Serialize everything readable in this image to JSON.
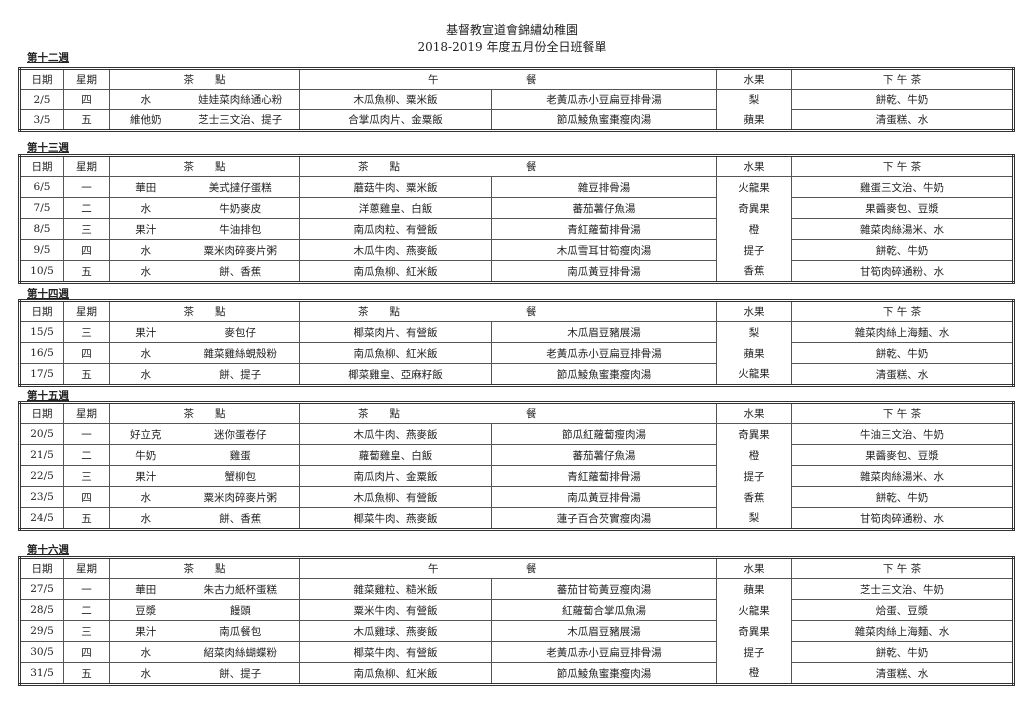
{
  "title": {
    "line1": "基督教宣道會錦繡幼稚園",
    "line2": "2018-2019 年度五月份全日班餐單"
  },
  "columns": {
    "date": "日期",
    "weekday": "星期",
    "tea": "茶　　點",
    "fruit": "水果",
    "afternoon": "下 午 茶"
  },
  "weeks": [
    {
      "label": "第十二週",
      "lunch_header_left": "午",
      "lunch_header_right": "餐",
      "rows": [
        [
          "2/5",
          "四",
          "水",
          "娃娃菜肉絲通心粉",
          "木瓜魚柳、粟米飯",
          "老黃瓜赤小豆扁豆排骨湯",
          "梨",
          "餅乾、牛奶"
        ],
        [
          "3/5",
          "五",
          "維他奶",
          "芝士三文治、提子",
          "合掌瓜肉片、金粟飯",
          "節瓜鯪魚蜜棗瘦肉湯",
          "蘋果",
          "清蛋糕、水"
        ]
      ]
    },
    {
      "label": "第十三週",
      "lunch_header_left": "茶　　點",
      "lunch_header_right": "餐",
      "rows": [
        [
          "6/5",
          "一",
          "華田",
          "美式撻仔蛋糕",
          "蘑菇牛肉、粟米飯",
          "雜豆排骨湯",
          "火龍果",
          "雞蛋三文治、牛奶"
        ],
        [
          "7/5",
          "二",
          "水",
          "牛奶麥皮",
          "洋蔥雞皇、白飯",
          "蕃茄薯仔魚湯",
          "奇異果",
          "果醬麥包、豆漿"
        ],
        [
          "8/5",
          "三",
          "果汁",
          "牛油排包",
          "南瓜肉粒、有營飯",
          "青紅蘿蔔排骨湯",
          "橙",
          "雜菜肉絲湯米、水"
        ],
        [
          "9/5",
          "四",
          "水",
          "粟米肉碎麥片粥",
          "木瓜牛肉、燕麥飯",
          "木瓜雪耳甘筍瘦肉湯",
          "提子",
          "餅乾、牛奶"
        ],
        [
          "10/5",
          "五",
          "水",
          "餅、香蕉",
          "南瓜魚柳、紅米飯",
          "南瓜黃豆排骨湯",
          "香蕉",
          "甘筍肉碎通粉、水"
        ]
      ]
    },
    {
      "label": "第十四週",
      "lunch_header_left": "茶　　點",
      "lunch_header_right": "餐",
      "rows": [
        [
          "15/5",
          "三",
          "果汁",
          "麥包仔",
          "椰菜肉片、有營飯",
          "木瓜眉豆豬展湯",
          "梨",
          "雜菜肉絲上海麵、水"
        ],
        [
          "16/5",
          "四",
          "水",
          "雜菜雞絲蜆殼粉",
          "南瓜魚柳、紅米飯",
          "老黃瓜赤小豆扁豆排骨湯",
          "蘋果",
          "餅乾、牛奶"
        ],
        [
          "17/5",
          "五",
          "水",
          "餅、提子",
          "椰菜雞皇、亞麻籽飯",
          "節瓜鯪魚蜜棗瘦肉湯",
          "火龍果",
          "清蛋糕、水"
        ]
      ]
    },
    {
      "label": "第十五週",
      "lunch_header_left": "茶　　點",
      "lunch_header_right": "餐",
      "rows": [
        [
          "20/5",
          "一",
          "好立克",
          "迷你蛋卷仔",
          "木瓜牛肉、燕麥飯",
          "節瓜紅蘿蔔瘦肉湯",
          "奇異果",
          "牛油三文治、牛奶"
        ],
        [
          "21/5",
          "二",
          "牛奶",
          "雞蛋",
          "蘿蔔雞皇、白飯",
          "蕃茄薯仔魚湯",
          "橙",
          "果醬麥包、豆漿"
        ],
        [
          "22/5",
          "三",
          "果汁",
          "蟹柳包",
          "南瓜肉片、金粟飯",
          "青紅蘿蔔排骨湯",
          "提子",
          "雜菜肉絲湯米、水"
        ],
        [
          "23/5",
          "四",
          "水",
          "粟米肉碎麥片粥",
          "木瓜魚柳、有營飯",
          "南瓜黃豆排骨湯",
          "香蕉",
          "餅乾、牛奶"
        ],
        [
          "24/5",
          "五",
          "水",
          "餅、香蕉",
          "椰菜牛肉、燕麥飯",
          "蓮子百合芡實瘦肉湯",
          "梨",
          "甘筍肉碎通粉、水"
        ]
      ]
    },
    {
      "label": "第十六週",
      "lunch_header_left": "午",
      "lunch_header_right": "餐",
      "rows": [
        [
          "27/5",
          "一",
          "華田",
          "朱古力紙杯蛋糕",
          "雜菜雞粒、糙米飯",
          "蕃茄甘筍黃豆瘦肉湯",
          "蘋果",
          "芝士三文治、牛奶"
        ],
        [
          "28/5",
          "二",
          "豆漿",
          "饅頭",
          "粟米牛肉、有營飯",
          "紅蘿蔔合掌瓜魚湯",
          "火龍果",
          "烚蛋、豆漿"
        ],
        [
          "29/5",
          "三",
          "果汁",
          "南瓜餐包",
          "木瓜雞球、燕麥飯",
          "木瓜眉豆豬展湯",
          "奇異果",
          "雜菜肉絲上海麵、水"
        ],
        [
          "30/5",
          "四",
          "水",
          "紹菜肉絲蝴蝶粉",
          "椰菜牛肉、有營飯",
          "老黃瓜赤小豆扁豆排骨湯",
          "提子",
          "餅乾、牛奶"
        ],
        [
          "31/5",
          "五",
          "水",
          "餅、提子",
          "南瓜魚柳、紅米飯",
          "節瓜鯪魚蜜棗瘦肉湯",
          "橙",
          "清蛋糕、水"
        ]
      ]
    }
  ]
}
